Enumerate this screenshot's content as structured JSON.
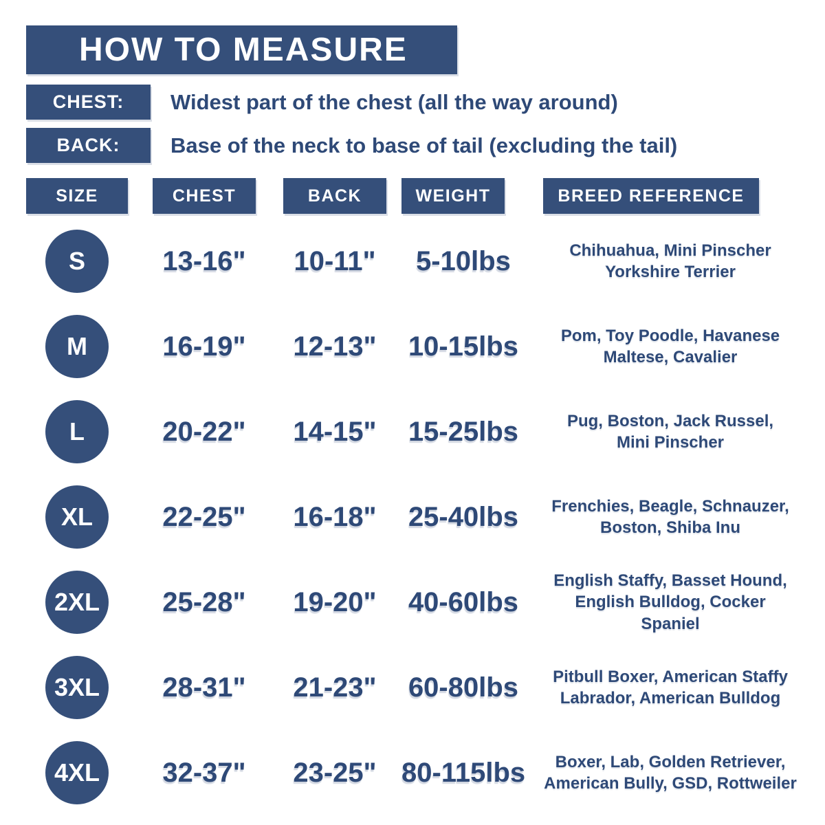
{
  "colors": {
    "navy_fill": "#354F7A",
    "navy_text": "#2E4977",
    "label_text": "#FFFFFF",
    "background": "#FFFFFF"
  },
  "chart_data": {
    "type": "table",
    "title": "HOW TO MEASURE",
    "measure_guide": [
      {
        "label": "CHEST:",
        "description": "Widest part of the chest (all the way around)"
      },
      {
        "label": "BACK:",
        "description": "Base of the neck to base of tail (excluding the tail)"
      }
    ],
    "columns": [
      "SIZE",
      "CHEST",
      "BACK",
      "WEIGHT",
      "BREED REFERENCE"
    ],
    "rows": [
      {
        "size": "S",
        "chest": "13-16\"",
        "back": "10-11\"",
        "weight": "5-10lbs",
        "breeds": "Chihuahua, Mini Pinscher\nYorkshire Terrier"
      },
      {
        "size": "M",
        "chest": "16-19\"",
        "back": "12-13\"",
        "weight": "10-15lbs",
        "breeds": "Pom, Toy Poodle, Havanese\nMaltese, Cavalier"
      },
      {
        "size": "L",
        "chest": "20-22\"",
        "back": "14-15\"",
        "weight": "15-25lbs",
        "breeds": "Pug, Boston, Jack Russel,\nMini Pinscher"
      },
      {
        "size": "XL",
        "chest": "22-25\"",
        "back": "16-18\"",
        "weight": "25-40lbs",
        "breeds": "Frenchies, Beagle, Schnauzer,\nBoston, Shiba Inu"
      },
      {
        "size": "2XL",
        "chest": "25-28\"",
        "back": "19-20\"",
        "weight": "40-60lbs",
        "breeds": "English Staffy, Basset Hound,\nEnglish Bulldog, Cocker\nSpaniel"
      },
      {
        "size": "3XL",
        "chest": "28-31\"",
        "back": "21-23\"",
        "weight": "60-80lbs",
        "breeds": "Pitbull Boxer, American Staffy\nLabrador, American Bulldog"
      },
      {
        "size": "4XL",
        "chest": "32-37\"",
        "back": "23-25\"",
        "weight": "80-115lbs",
        "breeds": "Boxer, Lab, Golden Retriever,\nAmerican Bully, GSD, Rottweiler"
      }
    ]
  }
}
